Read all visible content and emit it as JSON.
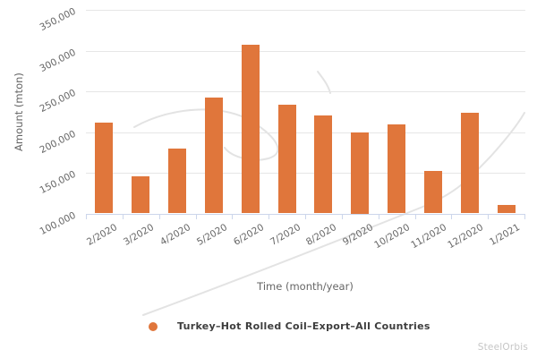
{
  "chart_data": {
    "type": "bar",
    "title": "",
    "xlabel": "Time (month/year)",
    "ylabel": "Amount (mton)",
    "categories": [
      "2/2020",
      "3/2020",
      "4/2020",
      "5/2020",
      "6/2020",
      "7/2020",
      "8/2020",
      "9/2020",
      "10/2020",
      "11/2020",
      "12/2020",
      "1/2021"
    ],
    "series": [
      {
        "name": "Turkey–Hot Rolled Coil–Export–All Countries",
        "values": [
          212000,
          146000,
          180000,
          242000,
          307000,
          234000,
          220000,
          200000,
          209000,
          152000,
          224000,
          110000
        ]
      }
    ],
    "ylim": [
      100000,
      350000
    ],
    "ytick_interval": 50000,
    "ytick_labels": [
      "100,000",
      "150,000",
      "200,000",
      "250,000",
      "300,000",
      "350,000"
    ],
    "grid": true,
    "legend_position": "bottom"
  },
  "axes": {
    "x_title": "Time (month/year)",
    "y_title": "Amount (mton)"
  },
  "legend": {
    "label": "Turkey–Hot Rolled Coil–Export–All Countries"
  },
  "watermark_text": "SteelOrbis",
  "colors": {
    "bar": "#e0763b",
    "gridline": "#e6e6e6",
    "axis_line": "#ccd6eb",
    "tick_label": "#666666",
    "legend_text": "#3d3d3d",
    "watermark_text": "#c6c6c6",
    "watermark_curve": "#e3e3e3"
  }
}
